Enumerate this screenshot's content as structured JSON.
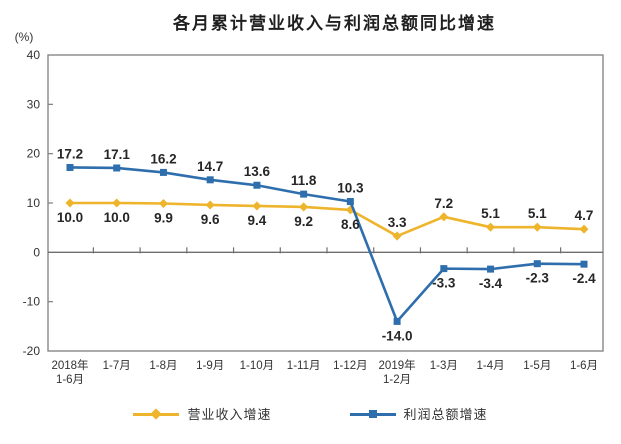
{
  "chart_data": {
    "type": "line",
    "title": "各月累计营业收入与利润总额同比增速",
    "unit_label": "(%)",
    "categories": [
      [
        "2018年",
        "1-6月"
      ],
      [
        "1-7月"
      ],
      [
        "1-8月"
      ],
      [
        "1-9月"
      ],
      [
        "1-10月"
      ],
      [
        "1-11月"
      ],
      [
        "1-12月"
      ],
      [
        "2019年",
        "1-2月"
      ],
      [
        "1-3月"
      ],
      [
        "1-4月"
      ],
      [
        "1-5月"
      ],
      [
        "1-6月"
      ]
    ],
    "series": [
      {
        "name": "营业收入增速",
        "color": "#EEB42C",
        "marker": "diamond",
        "values": [
          10.0,
          10.0,
          9.9,
          9.6,
          9.4,
          9.2,
          8.6,
          3.3,
          7.2,
          5.1,
          5.1,
          4.7
        ],
        "label_side": [
          "below",
          "below",
          "below",
          "below",
          "below",
          "below",
          "below",
          "above",
          "above",
          "above",
          "above",
          "above"
        ]
      },
      {
        "name": "利润总额增速",
        "color": "#2F6EAD",
        "marker": "square",
        "values": [
          17.2,
          17.1,
          16.2,
          14.7,
          13.6,
          11.8,
          10.3,
          -14.0,
          -3.3,
          -3.4,
          -2.3,
          -2.4
        ],
        "label_side": [
          "above",
          "above",
          "above",
          "above",
          "above",
          "above",
          "above",
          "below",
          "below",
          "below",
          "below",
          "below"
        ]
      }
    ],
    "y_axis": {
      "min": -20,
      "max": 40,
      "tick_step": 10,
      "ticks": [
        40,
        30,
        20,
        10,
        0,
        -10,
        -20
      ]
    },
    "axis_color": "#7E7E7E",
    "zero_line_color": "#6E6E6E",
    "label_color": "#262626",
    "tick_label_color": "#333333",
    "grid": false,
    "legend_position": "bottom"
  }
}
